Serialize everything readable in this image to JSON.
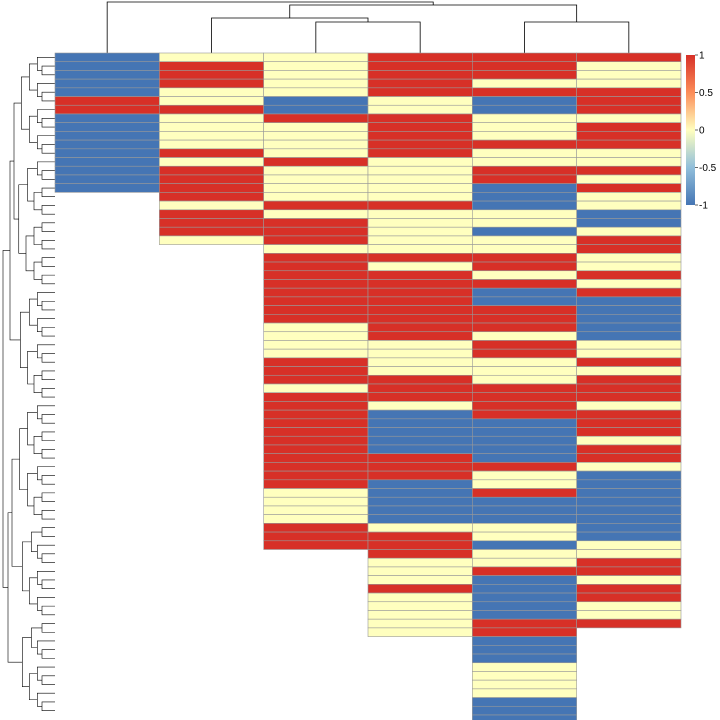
{
  "chart_data": {
    "type": "heatmap",
    "title": "",
    "xlabel": "",
    "ylabel": "",
    "value_range": [
      -1,
      1
    ],
    "colors": {
      "low": "#4575b4",
      "mid": "#ffffbf",
      "high": "#d73027",
      "grid": "#999999"
    },
    "legend": {
      "placement": "right",
      "ticks": [
        {
          "value": 1,
          "label": "1"
        },
        {
          "value": 0.5,
          "label": "0.5"
        },
        {
          "value": 0,
          "label": "0"
        },
        {
          "value": -0.5,
          "label": "-0.5"
        },
        {
          "value": -1,
          "label": "-1"
        }
      ]
    },
    "column_dendrogram": true,
    "row_dendrogram": true,
    "n_columns": 6,
    "n_rows": 76,
    "blocks": [
      [
        [
          1,
          -1
        ],
        [
          4,
          -1
        ],
        [
          2,
          1
        ],
        [
          9,
          -1
        ]
      ],
      [
        [
          1,
          0
        ],
        [
          3,
          1
        ],
        [
          2,
          0
        ],
        [
          1,
          1
        ],
        [
          4,
          0
        ],
        [
          1,
          1
        ],
        [
          1,
          0
        ],
        [
          4,
          1
        ],
        [
          1,
          0
        ],
        [
          3,
          1
        ],
        [
          1,
          0
        ]
      ],
      [
        [
          5,
          0
        ],
        [
          2,
          -1
        ],
        [
          1,
          1
        ],
        [
          4,
          0
        ],
        [
          1,
          1
        ],
        [
          4,
          0
        ],
        [
          1,
          1
        ],
        [
          1,
          0
        ],
        [
          3,
          1
        ],
        [
          1,
          0
        ],
        [
          8,
          1
        ],
        [
          4,
          0
        ],
        [
          3,
          1
        ],
        [
          1,
          0
        ],
        [
          3,
          1
        ],
        [
          8,
          1
        ],
        [
          4,
          0
        ],
        [
          3,
          1
        ]
      ],
      [
        [
          5,
          1
        ],
        [
          2,
          0
        ],
        [
          2,
          1
        ],
        [
          3,
          1
        ],
        [
          5,
          0
        ],
        [
          1,
          1
        ],
        [
          1,
          0
        ],
        [
          4,
          0
        ],
        [
          1,
          1
        ],
        [
          1,
          0
        ],
        [
          4,
          1
        ],
        [
          4,
          1
        ],
        [
          4,
          0
        ],
        [
          3,
          1
        ],
        [
          1,
          0
        ],
        [
          5,
          -1
        ],
        [
          3,
          1
        ],
        [
          5,
          -1
        ],
        [
          1,
          0
        ],
        [
          2,
          1
        ],
        [
          1,
          1
        ],
        [
          3,
          0
        ],
        [
          1,
          1
        ],
        [
          5,
          0
        ]
      ],
      [
        [
          3,
          1
        ],
        [
          1,
          0
        ],
        [
          1,
          1
        ],
        [
          2,
          -1
        ],
        [
          3,
          0
        ],
        [
          1,
          1
        ],
        [
          2,
          0
        ],
        [
          2,
          1
        ],
        [
          3,
          -1
        ],
        [
          2,
          0
        ],
        [
          1,
          -1
        ],
        [
          2,
          0
        ],
        [
          2,
          1
        ],
        [
          1,
          0
        ],
        [
          1,
          1
        ],
        [
          2,
          -1
        ],
        [
          3,
          1
        ],
        [
          1,
          0
        ],
        [
          2,
          1
        ],
        [
          3,
          0
        ],
        [
          4,
          1
        ],
        [
          5,
          -1
        ],
        [
          1,
          1
        ],
        [
          2,
          0
        ],
        [
          1,
          1
        ],
        [
          3,
          -1
        ],
        [
          2,
          0
        ],
        [
          1,
          -1
        ],
        [
          2,
          0
        ],
        [
          1,
          1
        ],
        [
          5,
          -1
        ],
        [
          2,
          1
        ],
        [
          3,
          -1
        ],
        [
          4,
          0
        ],
        [
          3,
          -1
        ]
      ],
      [
        [
          1,
          1
        ],
        [
          3,
          0
        ],
        [
          3,
          1
        ],
        [
          1,
          0
        ],
        [
          3,
          1
        ],
        [
          2,
          0
        ],
        [
          1,
          1
        ],
        [
          1,
          0
        ],
        [
          1,
          1
        ],
        [
          2,
          0
        ],
        [
          2,
          -1
        ],
        [
          1,
          0
        ],
        [
          2,
          1
        ],
        [
          2,
          0
        ],
        [
          1,
          1
        ],
        [
          1,
          0
        ],
        [
          1,
          1
        ],
        [
          5,
          -1
        ],
        [
          2,
          0
        ],
        [
          1,
          1
        ],
        [
          1,
          0
        ],
        [
          3,
          1
        ],
        [
          1,
          0
        ],
        [
          3,
          1
        ],
        [
          1,
          0
        ],
        [
          2,
          1
        ],
        [
          1,
          0
        ],
        [
          5,
          -1
        ],
        [
          3,
          -1
        ],
        [
          2,
          0
        ],
        [
          2,
          1
        ],
        [
          1,
          0
        ],
        [
          2,
          1
        ],
        [
          2,
          0
        ],
        [
          1,
          1
        ]
      ]
    ]
  }
}
